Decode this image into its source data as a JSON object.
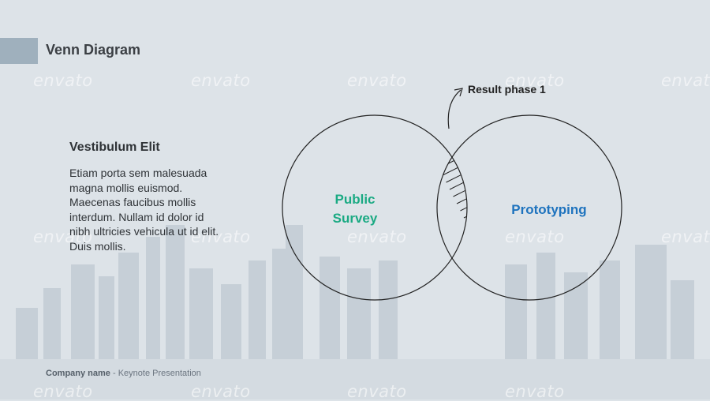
{
  "slide": {
    "title": "Venn Diagram"
  },
  "content": {
    "subheading": "Vestibulum Elit",
    "paragraph": "Etiam porta sem malesuada magna mollis euismod. Maecenas faucibus mollis interdum. Nullam id dolor id nibh ultricies vehicula ut id elit. Duis mollis."
  },
  "venn": {
    "left_label_line1": "Public",
    "left_label_line2": "Survey",
    "right_label": "Prototyping",
    "intersection_label": "Result phase 1",
    "left_color": "#1aaa83",
    "right_color": "#1e73be"
  },
  "footer": {
    "company": "Company name",
    "separator": " - ",
    "presentation": "Keynote Presentation"
  },
  "watermark": {
    "text": "envato"
  },
  "colors": {
    "background": "#dde3e8",
    "title_accent": "#9fb0bd"
  }
}
